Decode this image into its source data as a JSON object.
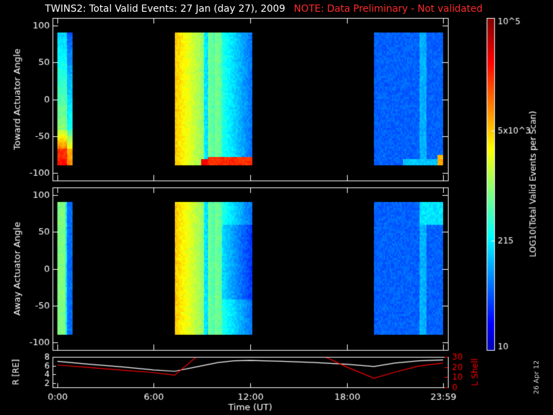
{
  "title": "TWINS2: Total Valid Events: 27 Jan (day  27), 2009",
  "note": "NOTE: Data Preliminary - Not validated",
  "stamp": "26 Apr 12",
  "colorbar": {
    "label": "LOG10(Total Valid Events per Scan)",
    "ticks": [
      "10",
      "215",
      "5x10^3",
      "10^5"
    ]
  },
  "chart_data": [
    {
      "type": "heatmap",
      "ylabel": "Toward Actuator Angle",
      "ylim": [
        -110,
        110
      ],
      "yticks": [
        -100,
        -50,
        0,
        50,
        100
      ],
      "data_blocks_hours": [
        [
          0.0,
          0.9
        ],
        [
          7.3,
          12.1
        ],
        [
          19.7,
          24.0
        ]
      ],
      "angle_range": [
        -88,
        90
      ],
      "xlim_hours": [
        -0.3,
        24.3
      ]
    },
    {
      "type": "heatmap",
      "ylabel": "Away Actuator Angle",
      "ylim": [
        -110,
        110
      ],
      "yticks": [
        -100,
        -50,
        0,
        50,
        100
      ],
      "data_blocks_hours": [
        [
          0.0,
          0.9
        ],
        [
          7.3,
          12.1
        ],
        [
          19.7,
          24.0
        ]
      ],
      "angle_range": [
        -88,
        90
      ],
      "xlim_hours": [
        -0.3,
        24.3
      ]
    },
    {
      "type": "line",
      "ylabel": "R [RE]",
      "y2label": "L Shell",
      "xlabel": "Time (UT)",
      "xticks": [
        "0:00",
        "6:00",
        "12:00",
        "18:00",
        "23:59"
      ],
      "yticks": [
        2,
        4,
        6,
        8
      ],
      "y2ticks": [
        0,
        10,
        20,
        30
      ],
      "ylim": [
        1,
        8
      ],
      "y2lim": [
        0,
        30
      ],
      "series": [
        {
          "color": "#ffffff",
          "x": [
            0,
            2,
            4,
            6,
            7.3,
            8.5,
            10,
            11,
            12,
            14,
            16,
            18,
            19.7,
            21,
            22.5,
            24
          ],
          "y": [
            7.0,
            6.3,
            5.7,
            5.0,
            4.7,
            5.6,
            6.7,
            7.1,
            7.2,
            7.0,
            6.7,
            6.3,
            5.8,
            6.6,
            7.1,
            7.3
          ]
        },
        {
          "color": "#ff0000",
          "x": [
            0,
            2,
            4,
            6,
            7.3,
            8.8
          ],
          "y": [
            22,
            19.5,
            17,
            14.5,
            12,
            32
          ]
        },
        {
          "color": "#ff0000",
          "x": [
            16.4,
            18,
            19.7,
            21,
            22.5,
            24
          ],
          "y": [
            32,
            20,
            9,
            15,
            21,
            24
          ]
        }
      ]
    }
  ]
}
